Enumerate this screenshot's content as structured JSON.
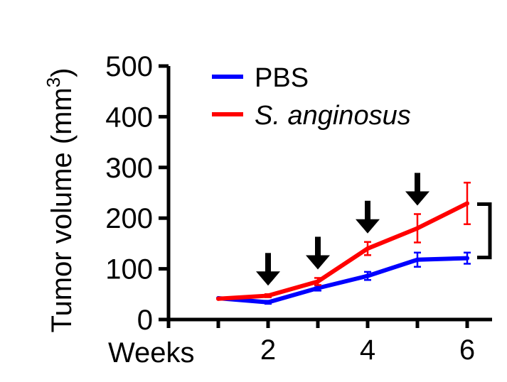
{
  "chart_data": {
    "type": "line",
    "ylabel": "Tumor volume (mm³)",
    "ylabel_main": "Tumor volume (mm",
    "ylabel_sup": "3",
    "ylabel_close": ")",
    "xlabel": "Weeks",
    "x": [
      1,
      2,
      3,
      4,
      5,
      6
    ],
    "x_ticks": [
      2,
      4,
      6
    ],
    "x_tick_labels": [
      "2",
      "4",
      "6"
    ],
    "xlim": [
      0,
      6.5
    ],
    "ylim": [
      0,
      500
    ],
    "y_ticks": [
      0,
      100,
      200,
      300,
      400,
      500
    ],
    "y_tick_labels": [
      "0",
      "100",
      "200",
      "300",
      "400",
      "500"
    ],
    "grid": false,
    "legend_position": "top-left",
    "series": [
      {
        "name": "PBS",
        "color": "#0000ff",
        "italic": false,
        "values": [
          42,
          34,
          62,
          86,
          118,
          121
        ],
        "errors": [
          0,
          3,
          5,
          8,
          14,
          11
        ]
      },
      {
        "name": "S. anginosus",
        "color": "#ff0000",
        "italic": true,
        "values": [
          41,
          47,
          75,
          140,
          180,
          229
        ],
        "errors": [
          0,
          3,
          7,
          13,
          28,
          41
        ]
      }
    ],
    "arrows_at_x": [
      2,
      3,
      4,
      5
    ],
    "significance": {
      "label": "**",
      "between_values": [
        121,
        229
      ],
      "at_x": 6
    }
  }
}
